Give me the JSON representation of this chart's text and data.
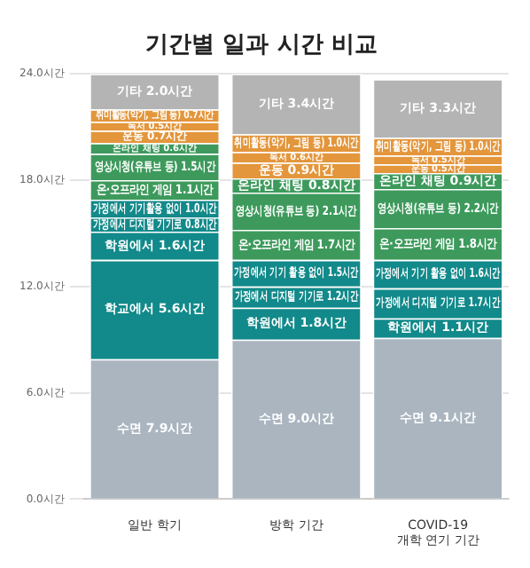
{
  "chart_data": {
    "type": "bar",
    "title": "기간별 일과 시간 비교",
    "stacked": true,
    "grid": "y",
    "legend": false,
    "categories": [
      "일반 학기",
      "방학 기간",
      "COVID-19\n개학 연기 기간"
    ],
    "ylim": [
      0,
      24
    ],
    "yticks": [
      {
        "value": 0,
        "label": "0.0시간"
      },
      {
        "value": 6,
        "label": "6.0시간"
      },
      {
        "value": 12,
        "label": "12.0시간"
      },
      {
        "value": 18,
        "label": "18.0시간"
      },
      {
        "value": 24,
        "label": "24.0시간"
      }
    ],
    "series": [
      {
        "color": "#aab5c0",
        "values": [
          7.9,
          9.0,
          9.1
        ],
        "value_labels": [
          "수면 7.9시간",
          "수면 9.0시간",
          "수면 9.1시간"
        ]
      },
      {
        "color": "#12898a",
        "values": [
          5.6,
          null,
          null
        ],
        "value_labels": [
          "학교에서 5.6시간",
          null,
          null
        ]
      },
      {
        "color": "#12898a",
        "values": [
          1.6,
          1.8,
          1.1
        ],
        "value_labels": [
          "학원에서 1.6시간",
          "학원에서 1.8시간",
          "학원에서 1.1시간"
        ]
      },
      {
        "color": "#12898a",
        "values": [
          0.8,
          1.2,
          1.7
        ],
        "value_labels": [
          "가정에서 디지털 기기로 0.8시간",
          "가정에서 디지털 기기로 1.2시간",
          "가정에서 디지털 기기로 1.7시간"
        ]
      },
      {
        "color": "#12898a",
        "values": [
          1.0,
          1.5,
          1.6
        ],
        "value_labels": [
          "가정에서 기기활용 없이 1.0시간",
          "가정에서 기기 활용 없이 1.5시간",
          "가정에서 기기 활용 없이 1.6시간"
        ]
      },
      {
        "color": "#3d9a5c",
        "values": [
          1.1,
          1.7,
          1.8
        ],
        "value_labels": [
          "온·오프라인 게임 1.1시간",
          "온·오프라인 게임 1.7시간",
          "온·오프라인 게임 1.8시간"
        ]
      },
      {
        "color": "#3d9a5c",
        "values": [
          1.5,
          2.1,
          2.2
        ],
        "value_labels": [
          "영상시청(유튜브 등) 1.5시간",
          "영상시청(유튜브 등) 2.1시간",
          "영상시청(유튜브 등) 2.2시간"
        ]
      },
      {
        "color": "#3d9a5c",
        "values": [
          0.6,
          0.8,
          0.9
        ],
        "value_labels": [
          "온라인 채팅 0.6시간",
          "온라인 채팅 0.8시간",
          "온라인 채팅 0.9시간"
        ]
      },
      {
        "color": "#e3963c",
        "values": [
          0.7,
          0.9,
          0.5
        ],
        "value_labels": [
          "운동 0.7시간",
          "운동 0.9시간",
          "운동 0.5시간"
        ]
      },
      {
        "color": "#e3963c",
        "values": [
          0.5,
          0.6,
          0.5
        ],
        "value_labels": [
          "독서 0.5시간",
          "독서 0.6시간",
          "독서 0.5시간"
        ]
      },
      {
        "color": "#e3963c",
        "values": [
          0.7,
          1.0,
          1.0
        ],
        "value_labels": [
          "취미활동(악기, 그림 등) 0.7시간",
          "취미활동(악기, 그림 등) 1.0시간",
          "취미활동(악기, 그림 등) 1.0시간"
        ]
      },
      {
        "color": "#b4b4b4",
        "values": [
          2.0,
          3.4,
          3.3
        ],
        "value_labels": [
          "기타 2.0시간",
          "기타 3.4시간",
          "기타 3.3시간"
        ]
      }
    ]
  }
}
